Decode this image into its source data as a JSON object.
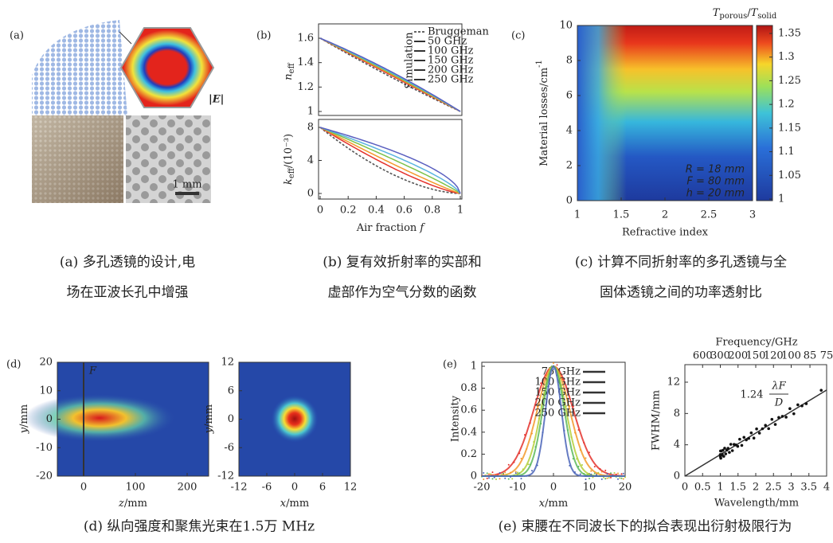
{
  "panels": {
    "a": {
      "label": "(a)",
      "field_label": "|E|",
      "scale_bar": "1 mm",
      "caption": [
        "(a) 多孔透镜的设计,电",
        "场在亚波长孔中增强"
      ]
    },
    "b": {
      "label": "(b)",
      "top_ylabel": "n",
      "top_ylabel_sub": "eff",
      "top_yticks": [
        1.6,
        1.4,
        1.2,
        1
      ],
      "bottom_ylabel": "k",
      "bottom_ylabel_sub": "eff",
      "bottom_ylabel_unit": "/(10⁻³)",
      "bottom_yticks": [
        8,
        4,
        0
      ],
      "xticks": [
        0,
        0.2,
        0.4,
        0.6,
        0.8,
        1
      ],
      "xlabel": "Air fraction ",
      "xlabel_var": "f",
      "legend_dashed": "Bruggeman",
      "legend_group": "Simulation",
      "legend": [
        {
          "name": "50 GHz",
          "color": "#e4312b"
        },
        {
          "name": "100 GHz",
          "color": "#f39a2c"
        },
        {
          "name": "150 GHz",
          "color": "#7cc24a"
        },
        {
          "name": "200 GHz",
          "color": "#5ab4e0"
        },
        {
          "name": "250 GHz",
          "color": "#5a5fc0"
        }
      ],
      "caption": [
        "(b) 复有效折射率的实部和",
        "虚部作为空气分数的函数"
      ]
    },
    "c": {
      "label": "(c)",
      "colorbar_title": {
        "num": "T",
        "num_sub": "porous",
        "sep": "/",
        "den": "T",
        "den_sub": "solid"
      },
      "colorbar_ticks": [
        1.35,
        1.3,
        1.25,
        1.2,
        1.15,
        1.1,
        1.05,
        1
      ],
      "yticks": [
        10,
        8,
        6,
        4,
        2,
        0
      ],
      "xticks": [
        1,
        1.5,
        2,
        2.5,
        3
      ],
      "xlabel": "Refractive index",
      "ylabel": "Material losses/cm",
      "ylabel_sup": "-1",
      "annotations": [
        "R = 18 mm",
        "F = 80 mm",
        "h = 20 mm"
      ],
      "caption": [
        "(c) 计算不同折射率的多孔透镜与全",
        "固体透镜之间的功率透射比"
      ]
    },
    "d": {
      "label": "(d)",
      "focus_label": "F",
      "left": {
        "yticks": [
          20,
          10,
          0,
          -10,
          -20
        ],
        "xticks": [
          0,
          100,
          200
        ],
        "xlabel_var": "z",
        "xlabel_unit": "/mm",
        "ylabel_var": "y",
        "ylabel_unit": "/mm"
      },
      "right": {
        "yticks": [
          12,
          6,
          0,
          -6,
          -12
        ],
        "xticks": [
          -12,
          -6,
          0,
          6,
          12
        ],
        "xlabel_var": "x",
        "xlabel_unit": "/mm",
        "ylabel_var": "y",
        "ylabel_unit": "/mm"
      },
      "caption": [
        "(d) 纵向强度和聚焦光束在1.5万 MHz"
      ]
    },
    "e": {
      "label": "(e)",
      "left": {
        "yticks": [
          1,
          0.8,
          0.6,
          0.4,
          0.2,
          0
        ],
        "xticks": [
          -20,
          -10,
          0,
          10,
          20
        ],
        "ylabel": "Intensity",
        "xlabel_var": "x",
        "xlabel_unit": "/mm",
        "legend": [
          {
            "name": "75 GHz",
            "color": "#e4312b"
          },
          {
            "name": "100 GHz",
            "color": "#f39a2c"
          },
          {
            "name": "150 GHz",
            "color": "#b5cf3a"
          },
          {
            "name": "200 GHz",
            "color": "#5cb85c"
          },
          {
            "name": "250 GHz",
            "color": "#4a64b8"
          }
        ]
      },
      "right": {
        "yticks": [
          12,
          8,
          4,
          0
        ],
        "xticks": [
          0,
          0.5,
          1,
          1.5,
          2,
          2.5,
          3,
          3.5,
          4
        ],
        "top_ticks": [
          600,
          300,
          200,
          150,
          120,
          100,
          85,
          75
        ],
        "top_label": "Frequency/GHz",
        "xlabel": "Wavelength/mm",
        "ylabel": "FWHM/mm",
        "formula": {
          "coef": "1.24",
          "num": "λF",
          "den": "D"
        }
      },
      "caption": [
        "(e) 束腰在不同波长下的拟合表现出衍射极限行为"
      ]
    }
  }
}
